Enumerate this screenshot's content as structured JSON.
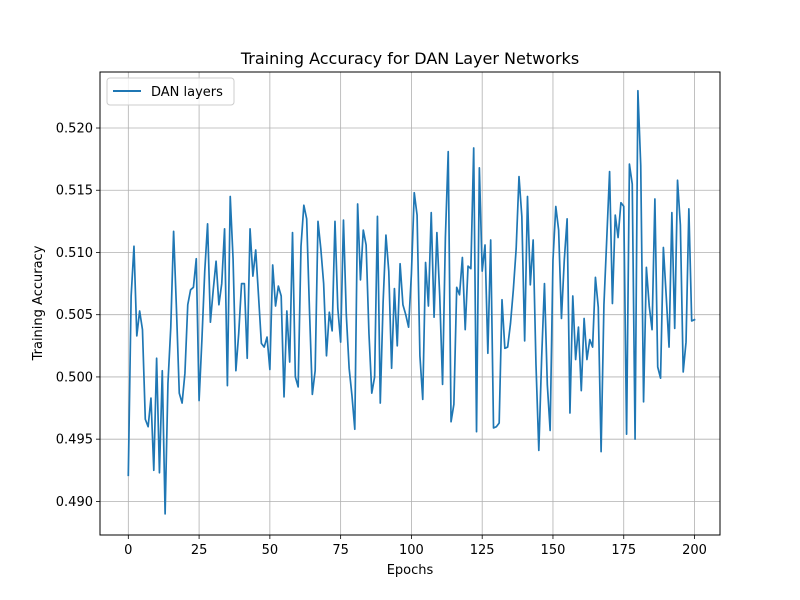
{
  "chart_data": {
    "type": "line",
    "title": "Training Accuracy for DAN Layer Networks",
    "xlabel": "Epochs",
    "ylabel": "Training Accuracy",
    "xlim": [
      -10,
      209
    ],
    "ylim": [
      0.4873,
      0.5245
    ],
    "xticks": [
      0,
      25,
      50,
      75,
      100,
      125,
      150,
      175,
      200
    ],
    "xtick_labels": [
      "0",
      "25",
      "50",
      "75",
      "100",
      "125",
      "150",
      "175",
      "200"
    ],
    "yticks": [
      0.49,
      0.495,
      0.5,
      0.505,
      0.51,
      0.515,
      0.52
    ],
    "ytick_labels": [
      "0.490",
      "0.495",
      "0.500",
      "0.505",
      "0.510",
      "0.515",
      "0.520"
    ],
    "grid": true,
    "legend_position": "top-left",
    "series": [
      {
        "name": "DAN layers",
        "color": "#1f77b4",
        "values": [
          0.4921,
          0.5065,
          0.5105,
          0.5033,
          0.5053,
          0.5038,
          0.4966,
          0.496,
          0.4983,
          0.4925,
          0.5015,
          0.4923,
          0.5005,
          0.489,
          0.4995,
          0.504,
          0.5117,
          0.5055,
          0.4987,
          0.4979,
          0.5003,
          0.5058,
          0.507,
          0.5072,
          0.5095,
          0.4981,
          0.503,
          0.5085,
          0.5123,
          0.5044,
          0.507,
          0.5093,
          0.5058,
          0.5075,
          0.5119,
          0.4993,
          0.5145,
          0.5095,
          0.5005,
          0.5035,
          0.5075,
          0.5075,
          0.5015,
          0.5119,
          0.5081,
          0.5102,
          0.5065,
          0.5027,
          0.5024,
          0.5032,
          0.5006,
          0.509,
          0.5057,
          0.5073,
          0.5065,
          0.4984,
          0.5053,
          0.5012,
          0.5116,
          0.5,
          0.4992,
          0.5105,
          0.5138,
          0.5127,
          0.5053,
          0.4986,
          0.5005,
          0.5125,
          0.5103,
          0.5075,
          0.5017,
          0.5052,
          0.5037,
          0.5125,
          0.5055,
          0.5028,
          0.5126,
          0.505,
          0.5007,
          0.4985,
          0.4958,
          0.5139,
          0.5078,
          0.5118,
          0.5106,
          0.5035,
          0.4987,
          0.5,
          0.5129,
          0.4979,
          0.506,
          0.5114,
          0.5085,
          0.5007,
          0.5071,
          0.5025,
          0.5091,
          0.5058,
          0.505,
          0.504,
          0.5083,
          0.5148,
          0.513,
          0.5017,
          0.4982,
          0.5092,
          0.5057,
          0.5132,
          0.5048,
          0.5116,
          0.5065,
          0.4994,
          0.5112,
          0.5181,
          0.4964,
          0.4978,
          0.5072,
          0.5066,
          0.5096,
          0.5038,
          0.5089,
          0.5087,
          0.5184,
          0.4956,
          0.5168,
          0.5085,
          0.5106,
          0.5019,
          0.511,
          0.4959,
          0.496,
          0.4963,
          0.5062,
          0.5023,
          0.5024,
          0.5043,
          0.507,
          0.5103,
          0.5161,
          0.5129,
          0.5029,
          0.5145,
          0.5074,
          0.511,
          0.501,
          0.4941,
          0.5015,
          0.5075,
          0.4994,
          0.4957,
          0.5094,
          0.5137,
          0.5118,
          0.5047,
          0.5094,
          0.5127,
          0.4971,
          0.5065,
          0.5014,
          0.504,
          0.4989,
          0.5047,
          0.5014,
          0.503,
          0.5024,
          0.508,
          0.5056,
          0.494,
          0.5058,
          0.5111,
          0.5165,
          0.5059,
          0.513,
          0.5112,
          0.514,
          0.5137,
          0.4954,
          0.5171,
          0.5155,
          0.495,
          0.523,
          0.517,
          0.498,
          0.5088,
          0.5057,
          0.5038,
          0.5143,
          0.5008,
          0.4999,
          0.5104,
          0.5065,
          0.5024,
          0.5132,
          0.5039,
          0.5158,
          0.5122,
          0.5004,
          0.5028,
          0.5135,
          0.5045,
          0.5046
        ]
      }
    ]
  }
}
